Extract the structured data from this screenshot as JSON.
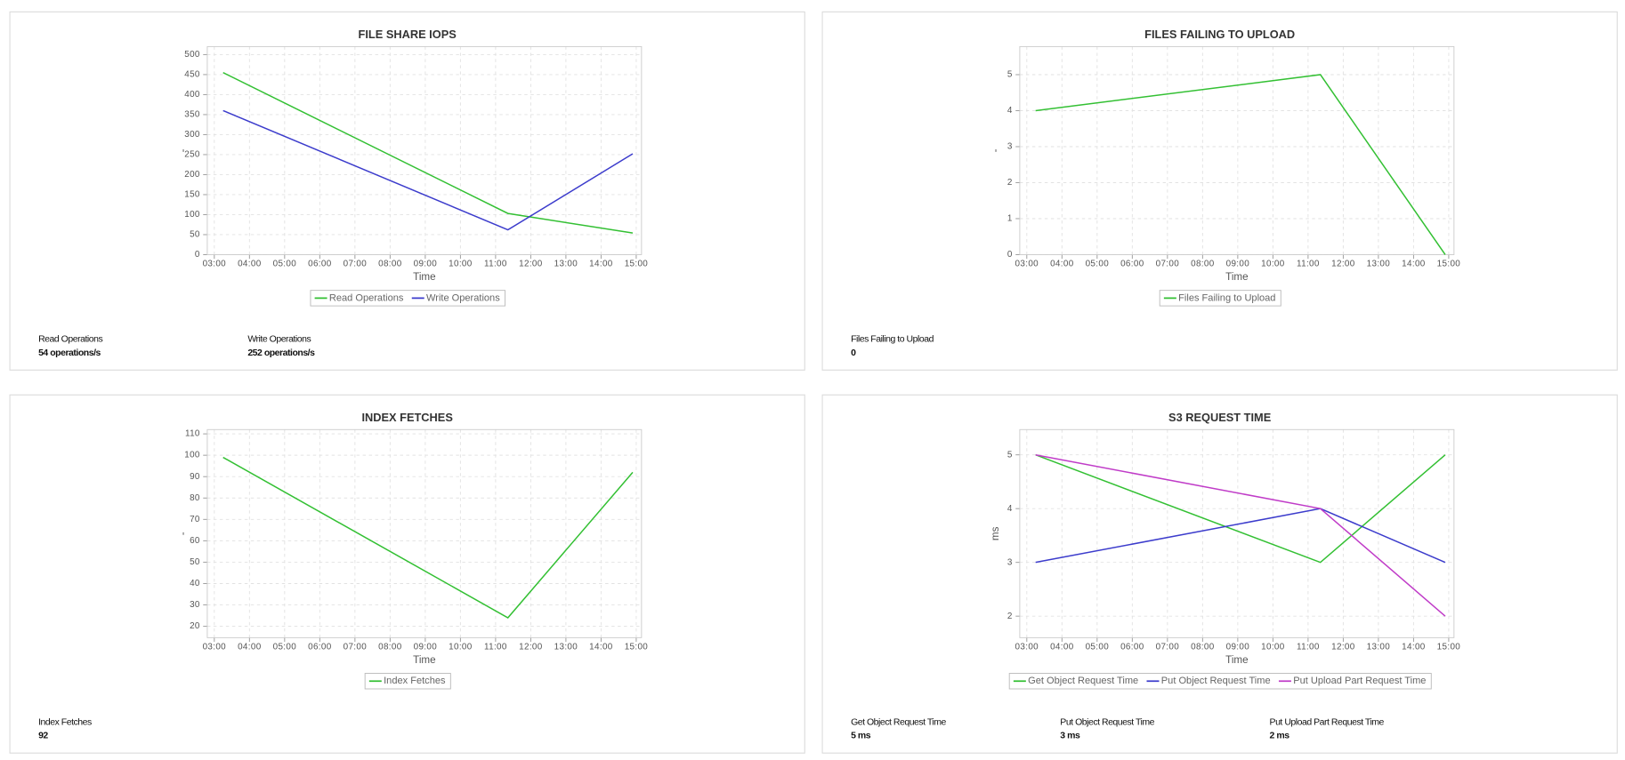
{
  "chart_data": [
    {
      "type": "line",
      "title": "FILE SHARE IOPS",
      "x_label": "Time",
      "y_label": "-",
      "x": [
        3.25,
        11.35,
        14.9
      ],
      "xlim": [
        2.8,
        15.15
      ],
      "xticks": [
        {
          "value": 3,
          "label": "03:00"
        },
        {
          "value": 4,
          "label": "04:00"
        },
        {
          "value": 5,
          "label": "05:00"
        },
        {
          "value": 6,
          "label": "06:00"
        },
        {
          "value": 7,
          "label": "07:00"
        },
        {
          "value": 8,
          "label": "08:00"
        },
        {
          "value": 9,
          "label": "09:00"
        },
        {
          "value": 10,
          "label": "10:00"
        },
        {
          "value": 11,
          "label": "11:00"
        },
        {
          "value": 12,
          "label": "12:00"
        },
        {
          "value": 13,
          "label": "13:00"
        },
        {
          "value": 14,
          "label": "14:00"
        },
        {
          "value": 15,
          "label": "15:00"
        }
      ],
      "ylim": [
        0,
        520
      ],
      "yticks": [
        0,
        50,
        100,
        150,
        200,
        250,
        300,
        350,
        400,
        450,
        500
      ],
      "grid": true,
      "series": [
        {
          "name": "Read Operations",
          "color": "#33c033",
          "values": [
            455,
            103,
            54
          ]
        },
        {
          "name": "Write Operations",
          "color": "#3c3ccc",
          "values": [
            360,
            62,
            252
          ]
        }
      ],
      "summary": [
        {
          "label": "Read Operations",
          "value": "54 operations/s"
        },
        {
          "label": "Write Operations",
          "value": "252 operations/s"
        }
      ]
    },
    {
      "type": "line",
      "title": "FILES FAILING TO UPLOAD",
      "x_label": "Time",
      "y_label": "-",
      "x": [
        3.25,
        11.35,
        14.9
      ],
      "xlim": [
        2.8,
        15.15
      ],
      "xticks": [
        {
          "value": 3,
          "label": "03:00"
        },
        {
          "value": 4,
          "label": "04:00"
        },
        {
          "value": 5,
          "label": "05:00"
        },
        {
          "value": 6,
          "label": "06:00"
        },
        {
          "value": 7,
          "label": "07:00"
        },
        {
          "value": 8,
          "label": "08:00"
        },
        {
          "value": 9,
          "label": "09:00"
        },
        {
          "value": 10,
          "label": "10:00"
        },
        {
          "value": 11,
          "label": "11:00"
        },
        {
          "value": 12,
          "label": "12:00"
        },
        {
          "value": 13,
          "label": "13:00"
        },
        {
          "value": 14,
          "label": "14:00"
        },
        {
          "value": 15,
          "label": "15:00"
        }
      ],
      "ylim": [
        0,
        5.78
      ],
      "yticks": [
        0,
        1,
        2,
        3,
        4,
        5
      ],
      "grid": true,
      "series": [
        {
          "name": "Files Failing to Upload",
          "color": "#33c033",
          "values": [
            4,
            5,
            0
          ]
        }
      ],
      "summary": [
        {
          "label": "Files Failing to Upload",
          "value": "0"
        }
      ]
    },
    {
      "type": "line",
      "title": "INDEX FETCHES",
      "x_label": "Time",
      "y_label": "-",
      "x": [
        3.25,
        11.35,
        14.9
      ],
      "xlim": [
        2.8,
        15.15
      ],
      "xticks": [
        {
          "value": 3,
          "label": "03:00"
        },
        {
          "value": 4,
          "label": "04:00"
        },
        {
          "value": 5,
          "label": "05:00"
        },
        {
          "value": 6,
          "label": "06:00"
        },
        {
          "value": 7,
          "label": "07:00"
        },
        {
          "value": 8,
          "label": "08:00"
        },
        {
          "value": 9,
          "label": "09:00"
        },
        {
          "value": 10,
          "label": "10:00"
        },
        {
          "value": 11,
          "label": "11:00"
        },
        {
          "value": 12,
          "label": "12:00"
        },
        {
          "value": 13,
          "label": "13:00"
        },
        {
          "value": 14,
          "label": "14:00"
        },
        {
          "value": 15,
          "label": "15:00"
        }
      ],
      "ylim": [
        14.7,
        112
      ],
      "yticks": [
        20,
        30,
        40,
        50,
        60,
        70,
        80,
        90,
        100,
        110
      ],
      "grid": true,
      "series": [
        {
          "name": "Index Fetches",
          "color": "#33c033",
          "values": [
            99,
            24,
            92
          ]
        }
      ],
      "summary": [
        {
          "label": "Index Fetches",
          "value": "92"
        }
      ]
    },
    {
      "type": "line",
      "title": "S3 REQUEST TIME",
      "x_label": "Time",
      "y_label": "ms",
      "x": [
        3.25,
        11.35,
        14.9
      ],
      "xlim": [
        2.8,
        15.15
      ],
      "xticks": [
        {
          "value": 3,
          "label": "03:00"
        },
        {
          "value": 4,
          "label": "04:00"
        },
        {
          "value": 5,
          "label": "05:00"
        },
        {
          "value": 6,
          "label": "06:00"
        },
        {
          "value": 7,
          "label": "07:00"
        },
        {
          "value": 8,
          "label": "08:00"
        },
        {
          "value": 9,
          "label": "09:00"
        },
        {
          "value": 10,
          "label": "10:00"
        },
        {
          "value": 11,
          "label": "11:00"
        },
        {
          "value": 12,
          "label": "12:00"
        },
        {
          "value": 13,
          "label": "13:00"
        },
        {
          "value": 14,
          "label": "14:00"
        },
        {
          "value": 15,
          "label": "15:00"
        }
      ],
      "ylim": [
        1.6,
        5.47
      ],
      "yticks": [
        2,
        3,
        4,
        5
      ],
      "grid": true,
      "series": [
        {
          "name": "Get Object Request Time",
          "color": "#33c033",
          "values": [
            5,
            3,
            5
          ]
        },
        {
          "name": "Put Object Request Time",
          "color": "#3c3ccc",
          "values": [
            3,
            4,
            3
          ]
        },
        {
          "name": "Put Upload Part Request Time",
          "color": "#c03cc8",
          "values": [
            5,
            4,
            2
          ]
        }
      ],
      "summary": [
        {
          "label": "Get Object Request Time",
          "value": "5 ms"
        },
        {
          "label": "Put Object Request Time",
          "value": "3 ms"
        },
        {
          "label": "Put Upload Part Request Time",
          "value": "2 ms"
        }
      ]
    }
  ]
}
